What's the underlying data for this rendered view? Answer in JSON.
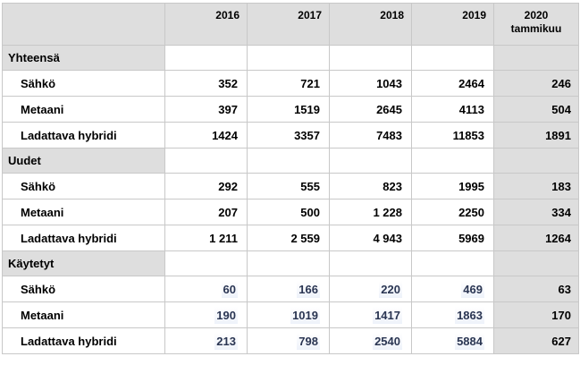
{
  "header": {
    "years": [
      "2016",
      "2017",
      "2018",
      "2019"
    ],
    "last_line1": "2020",
    "last_line2": "tammikuu"
  },
  "groups": [
    {
      "title": "Yhteensä",
      "rows": [
        {
          "label": "Sähkö",
          "values": [
            "352",
            "721",
            "1043",
            "2464"
          ],
          "last": "246"
        },
        {
          "label": "Metaani",
          "values": [
            "397",
            "1519",
            "2645",
            "4113"
          ],
          "last": "504"
        },
        {
          "label": "Ladattava hybridi",
          "values": [
            "1424",
            "3357",
            "7483",
            "11853"
          ],
          "last": "1891"
        }
      ]
    },
    {
      "title": "Uudet",
      "rows": [
        {
          "label": "Sähkö",
          "values": [
            "292",
            "555",
            "823",
            "1995"
          ],
          "last": "183"
        },
        {
          "label": "Metaani",
          "values": [
            "207",
            "500",
            "1 228",
            "2250"
          ],
          "last": "334"
        },
        {
          "label": "Ladattava hybridi",
          "values": [
            "1 211",
            "2 559",
            "4 943",
            "5969"
          ],
          "last": "1264"
        }
      ]
    },
    {
      "title": "Käytetyt",
      "rows": [
        {
          "label": "Sähkö",
          "values": [
            "60",
            "166",
            "220",
            "469"
          ],
          "last": "63"
        },
        {
          "label": "Metaani",
          "values": [
            "190",
            "1019",
            "1417",
            "1863"
          ],
          "last": "170"
        },
        {
          "label": "Ladattava hybridi",
          "values": [
            "213",
            "798",
            "2540",
            "5884"
          ],
          "last": "627"
        }
      ]
    }
  ]
}
